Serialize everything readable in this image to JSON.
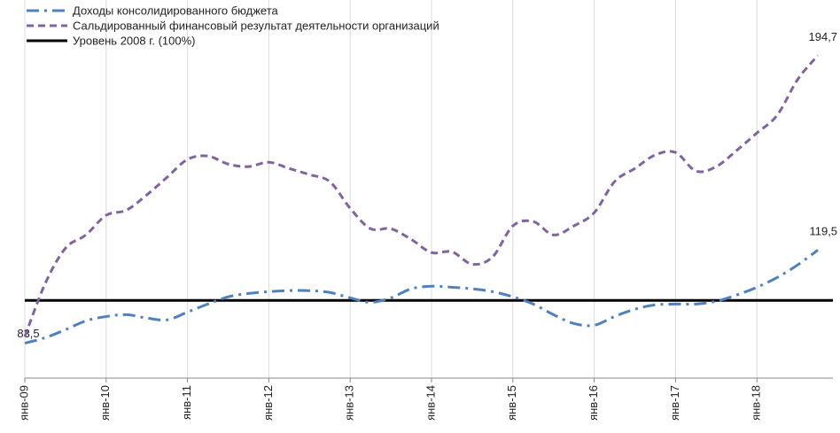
{
  "chart_data": {
    "type": "line",
    "categories": [
      "янв-09",
      null,
      null,
      null,
      "янв-10",
      null,
      null,
      null,
      "янв-11",
      null,
      null,
      null,
      "янв-12",
      null,
      null,
      null,
      "янв-13",
      null,
      null,
      null,
      "янв-14",
      null,
      null,
      null,
      "янв-15",
      null,
      null,
      null,
      "янв-16",
      null,
      null,
      null,
      "янв-17",
      null,
      null,
      null,
      "янв-18",
      null,
      null,
      null
    ],
    "series": [
      {
        "name": "Доходы консолидированного бюджета",
        "color": "#4f81bd",
        "dash": "dashdot",
        "values": [
          83.5,
          85.6,
          88.7,
          92.1,
          93.8,
          94.5,
          93.2,
          92.5,
          95.5,
          98.6,
          101.4,
          102.7,
          103.4,
          103.8,
          103.8,
          103.1,
          101.0,
          99.3,
          101.0,
          104.5,
          105.5,
          105.1,
          104.5,
          103.4,
          101.4,
          98.6,
          94.5,
          91.1,
          90.4,
          93.8,
          96.6,
          98.3,
          98.6,
          98.6,
          99.7,
          102.1,
          105.1,
          108.9,
          113.7,
          119.5
        ],
        "value_labels": [
          "83,5",
          null,
          null,
          null,
          null,
          null,
          null,
          null,
          null,
          null,
          null,
          null,
          null,
          null,
          null,
          null,
          null,
          null,
          null,
          null,
          null,
          null,
          null,
          null,
          null,
          null,
          null,
          null,
          null,
          null,
          null,
          null,
          null,
          null,
          null,
          null,
          null,
          null,
          null,
          "119,5"
        ]
      },
      {
        "name": "Сальдированный финансовый результат деятельности организаций",
        "color": "#8064a2",
        "dash": "dashed",
        "values": [
          86.0,
          106.5,
          120.2,
          125.3,
          132.9,
          134.9,
          140.8,
          147.6,
          154.5,
          155.8,
          152.7,
          151.7,
          153.4,
          151.0,
          148.6,
          145.9,
          135.6,
          127.7,
          127.7,
          123.6,
          118.5,
          118.8,
          114.0,
          116.8,
          128.8,
          130.5,
          125.3,
          128.8,
          133.9,
          145.9,
          151.0,
          156.2,
          157.2,
          150.0,
          151.7,
          157.9,
          164.7,
          171.6,
          185.3,
          194.7
        ],
        "value_labels": [
          null,
          null,
          null,
          null,
          null,
          null,
          null,
          null,
          null,
          null,
          null,
          null,
          null,
          null,
          null,
          null,
          null,
          null,
          null,
          null,
          null,
          null,
          null,
          null,
          null,
          null,
          null,
          null,
          null,
          null,
          null,
          null,
          null,
          null,
          null,
          null,
          null,
          null,
          null,
          "194,7"
        ]
      }
    ],
    "reference": {
      "name": "Уровень 2008 г. (100%)",
      "value": 100,
      "color": "#000000",
      "dash": "solid"
    },
    "ylim": [
      70,
      200
    ],
    "grid": true,
    "legend": "top-left"
  }
}
